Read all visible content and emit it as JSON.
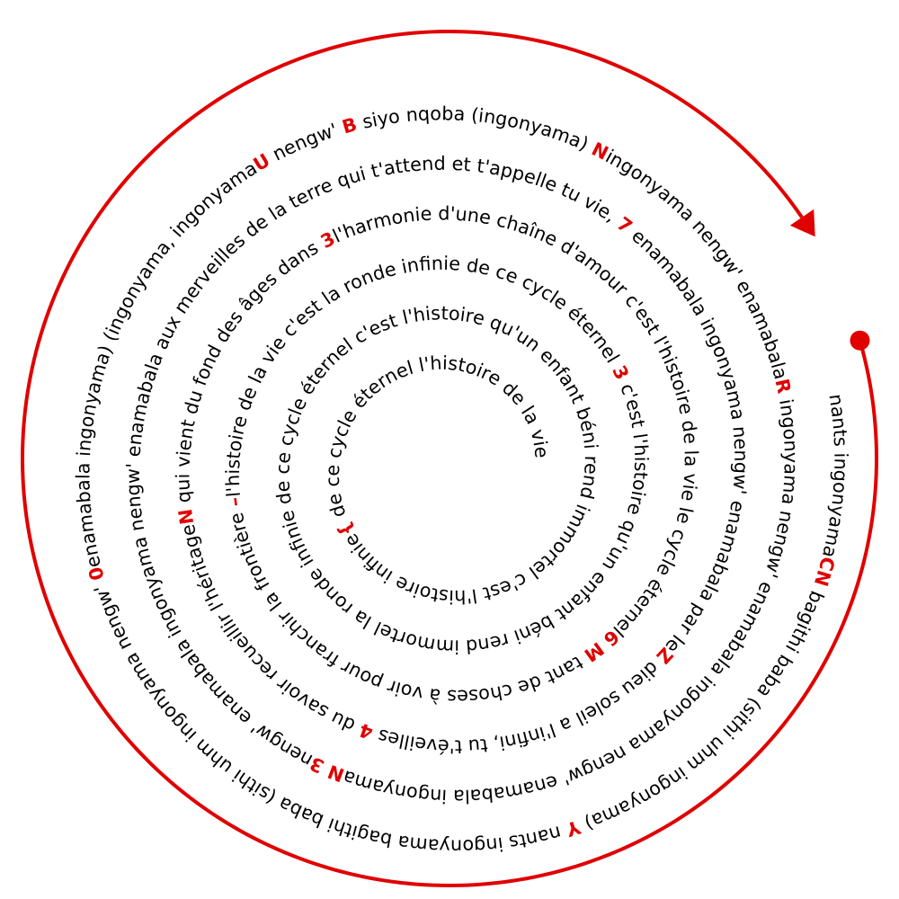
{
  "colors": {
    "text": "#000000",
    "highlight": "#e00000",
    "line": "#e00000"
  },
  "spiral_text": [
    "nants ingonyama",
    {
      "h": "C"
    },
    {
      "h": "N"
    },
    " bagithi baba (sithi uhm ingonyama) ",
    {
      "h": "Y"
    },
    " nants ingonyama bagithi baba (sithi uhm ingonyama nengw' ",
    {
      "h": "0"
    },
    "enamabala ingonyama) (ingonyama, ingonyama",
    {
      "h": "U"
    },
    " nengw' ",
    {
      "h": "B"
    },
    " siyo nqoba (ingonyama) ",
    {
      "h": "N"
    },
    "ingonyama nengw' enamabala",
    {
      "h": "R"
    },
    " ingonyama nengw' enamabala ingonyama nengw' enamabala ingonyama",
    {
      "h": "N"
    },
    " ",
    {
      "h": "3"
    },
    "nengw' enamabala ingonyama nengw' enamabala aux merveilles de la terre qui t'attend et t'appelle tu vie, ",
    {
      "h": "7"
    },
    " enamabala ingonyama nengw' enamabala par le",
    {
      "h": "Z"
    },
    " dieu soleil a l'infini, tu t'éveilles ",
    {
      "h": "4"
    },
    " du savoir recueillir l'héritage",
    {
      "h": "N"
    },
    " qui vient du fond des âges dans ",
    {
      "h": "3"
    },
    "l'harmonie d'une chaîne d'amour c'est l'histoire de la vie le cycle éternel",
    {
      "h": "6"
    },
    " ",
    {
      "h": "M"
    },
    " tant de choses à voir pour franchir la frontière ",
    {
      "h": "–"
    },
    "l'histoire de la vie c'est la ronde infinie de ce cycle éternel ",
    {
      "h": "3"
    },
    " c'est l'histoire qu'un enfant béni rend immortel la ronde infinie de ce cycle éternel c'est l'histoire qu'un enfant béni rend immortel c'est l'histoire infinie",
    {
      "h": "{"
    },
    " de ce cycle éternel l'histoire de la vie"
  ],
  "ending_glyph": "{"
}
